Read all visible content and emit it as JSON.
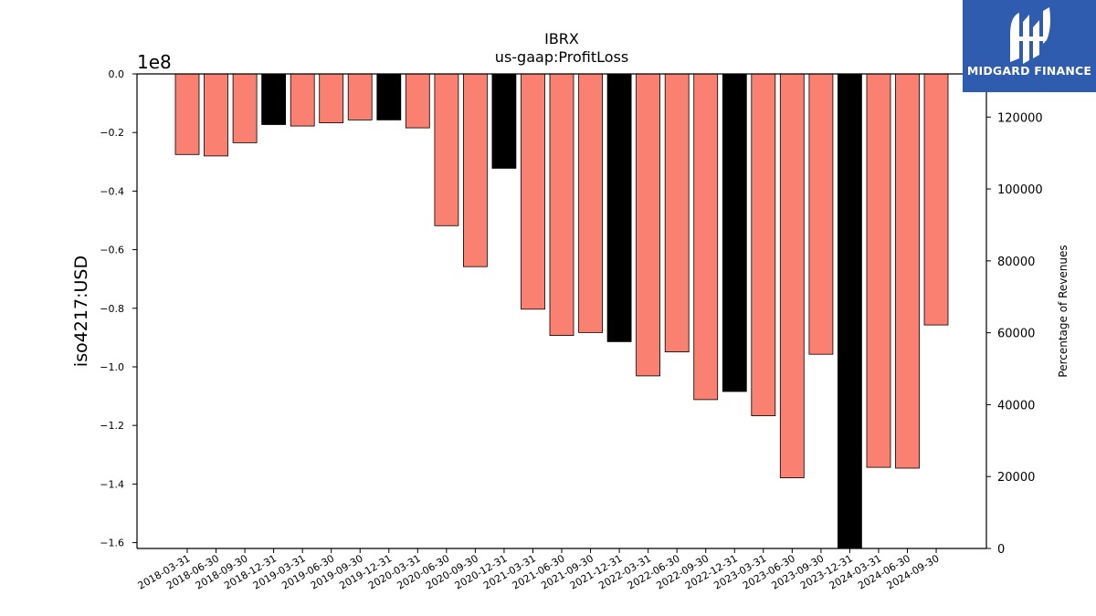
{
  "chart_data": {
    "type": "bar",
    "title": "IBRX",
    "subtitle": "us-gaap:ProfitLoss",
    "ylabel": "iso4217:USD",
    "y_offset_label": "1e8",
    "y_right_label": "Percentage of Revenues",
    "ylim": [
      -162000000,
      0
    ],
    "yticks": [
      0,
      -20000000,
      -40000000,
      -60000000,
      -80000000,
      -100000000,
      -120000000,
      -140000000,
      -160000000
    ],
    "ytick_labels": [
      "0.0",
      "−0.2",
      "−0.4",
      "−0.6",
      "−0.8",
      "−1.0",
      "−1.2",
      "−1.4",
      "−1.6"
    ],
    "y_right_lim": [
      0,
      132000
    ],
    "y_right_ticks": [
      0,
      20000,
      40000,
      60000,
      80000,
      100000,
      120000
    ],
    "y_right_tick_labels": [
      "0",
      "20000",
      "40000",
      "60000",
      "80000",
      "100000",
      "120000"
    ],
    "categories": [
      "2018-03-31",
      "2018-06-30",
      "2018-09-30",
      "2018-12-31",
      "2019-03-31",
      "2019-06-30",
      "2019-09-30",
      "2019-12-31",
      "2020-03-31",
      "2020-06-30",
      "2020-09-30",
      "2020-12-31",
      "2021-03-31",
      "2021-06-30",
      "2021-09-30",
      "2021-12-31",
      "2022-03-31",
      "2022-06-30",
      "2022-09-30",
      "2022-12-31",
      "2023-03-31",
      "2023-06-30",
      "2023-09-30",
      "2023-12-31",
      "2024-03-31",
      "2024-06-30",
      "2024-09-30"
    ],
    "series": [
      {
        "values": [
          -27500000,
          -28000000,
          -23500000,
          -17300000,
          -17800000,
          -16700000,
          -15700000,
          -15700000,
          -18400000,
          -51800000,
          -65800000,
          -32200000,
          -80300000,
          -89300000,
          -88300000,
          -91400000,
          -103100000,
          -94900000,
          -111200000,
          -108400000,
          -116700000,
          -137900000,
          -95700000,
          -162000000,
          -134300000,
          -134600000,
          -85700000
        ]
      }
    ],
    "bar_types": [
      "quarter",
      "quarter",
      "quarter",
      "annual",
      "quarter",
      "quarter",
      "quarter",
      "annual",
      "quarter",
      "quarter",
      "quarter",
      "annual",
      "quarter",
      "quarter",
      "quarter",
      "annual",
      "quarter",
      "quarter",
      "quarter",
      "annual",
      "quarter",
      "quarter",
      "quarter",
      "annual",
      "quarter",
      "quarter",
      "quarter"
    ],
    "colors": {
      "quarter": "#fa8072",
      "annual": "#000000"
    },
    "grid": false
  },
  "logo": {
    "text": "MIDGARD FINANCE",
    "color": "#2f5cae"
  }
}
